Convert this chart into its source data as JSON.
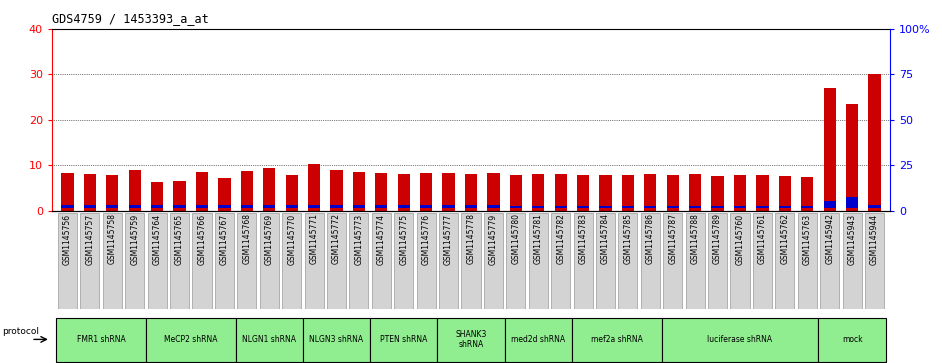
{
  "title": "GDS4759 / 1453393_a_at",
  "samples": [
    "GSM1145756",
    "GSM1145757",
    "GSM1145758",
    "GSM1145759",
    "GSM1145764",
    "GSM1145765",
    "GSM1145766",
    "GSM1145767",
    "GSM1145768",
    "GSM1145769",
    "GSM1145770",
    "GSM1145771",
    "GSM1145772",
    "GSM1145773",
    "GSM1145774",
    "GSM1145775",
    "GSM1145776",
    "GSM1145777",
    "GSM1145778",
    "GSM1145779",
    "GSM1145780",
    "GSM1145781",
    "GSM1145782",
    "GSM1145783",
    "GSM1145784",
    "GSM1145785",
    "GSM1145786",
    "GSM1145787",
    "GSM1145788",
    "GSM1145789",
    "GSM1145760",
    "GSM1145761",
    "GSM1145762",
    "GSM1145763",
    "GSM1145942",
    "GSM1145943",
    "GSM1145944"
  ],
  "red_values": [
    8.2,
    8.0,
    7.9,
    9.0,
    6.2,
    6.5,
    8.5,
    7.2,
    8.7,
    9.4,
    7.9,
    10.2,
    8.9,
    8.5,
    8.3,
    8.1,
    8.3,
    8.2,
    8.1,
    8.2,
    7.9,
    8.1,
    8.0,
    7.9,
    7.9,
    7.8,
    8.1,
    7.9,
    8.0,
    7.7,
    7.8,
    7.8,
    7.7,
    7.5,
    27.0,
    23.5,
    30.2
  ],
  "blue_bottom": [
    0.5,
    0.5,
    0.5,
    0.5,
    0.5,
    0.5,
    0.5,
    0.5,
    0.5,
    0.5,
    0.5,
    0.5,
    0.5,
    0.5,
    0.5,
    0.5,
    0.5,
    0.5,
    0.5,
    0.5,
    0.5,
    0.5,
    0.5,
    0.5,
    0.5,
    0.5,
    0.5,
    0.5,
    0.5,
    0.5,
    0.5,
    0.5,
    0.5,
    0.5,
    0.5,
    0.5,
    0.5
  ],
  "blue_height": [
    0.8,
    0.8,
    0.8,
    0.8,
    0.8,
    0.8,
    0.8,
    0.8,
    0.8,
    0.8,
    0.8,
    0.8,
    0.8,
    0.8,
    0.8,
    0.8,
    0.8,
    0.8,
    0.8,
    0.8,
    0.5,
    0.5,
    0.5,
    0.5,
    0.5,
    0.5,
    0.5,
    0.5,
    0.5,
    0.5,
    0.5,
    0.5,
    0.5,
    0.5,
    1.5,
    2.5,
    0.8
  ],
  "protocols": [
    {
      "label": "FMR1 shRNA",
      "start": 0,
      "end": 4
    },
    {
      "label": "MeCP2 shRNA",
      "start": 4,
      "end": 8
    },
    {
      "label": "NLGN1 shRNA",
      "start": 8,
      "end": 11
    },
    {
      "label": "NLGN3 shRNA",
      "start": 11,
      "end": 14
    },
    {
      "label": "PTEN shRNA",
      "start": 14,
      "end": 17
    },
    {
      "label": "SHANK3\nshRNA",
      "start": 17,
      "end": 20
    },
    {
      "label": "med2d shRNA",
      "start": 20,
      "end": 23
    },
    {
      "label": "mef2a shRNA",
      "start": 23,
      "end": 27
    },
    {
      "label": "luciferase shRNA",
      "start": 27,
      "end": 34
    },
    {
      "label": "mock",
      "start": 34,
      "end": 37
    }
  ],
  "ylim_left": [
    0,
    40
  ],
  "ylim_right": [
    0,
    100
  ],
  "yticks_left": [
    0,
    10,
    20,
    30,
    40
  ],
  "yticks_right": [
    0,
    25,
    50,
    75,
    100
  ],
  "bar_color_red": "#CC0000",
  "bar_color_blue": "#0000CC",
  "bar_width": 0.55,
  "bg_color": "#FFFFFF",
  "proto_color": "#90EE90",
  "tick_bg_color": "#D3D3D3"
}
